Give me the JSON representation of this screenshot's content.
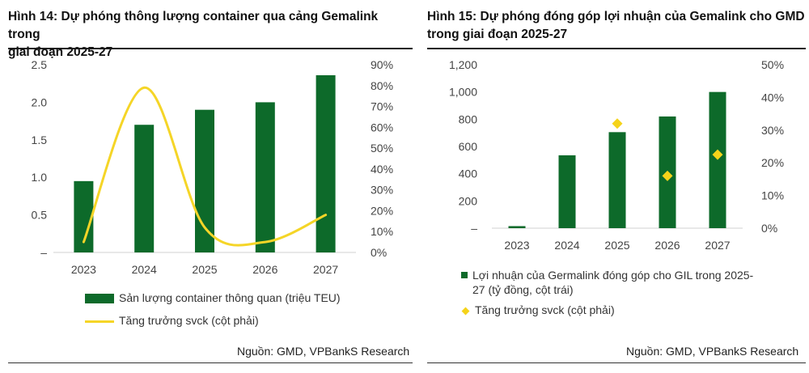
{
  "colors": {
    "bar": "#0d6a2a",
    "line": "#f5d527",
    "marker": "#f5d31a"
  },
  "left": {
    "title_line1": "Hình 14: Dự phóng thông lượng container qua cảng Gemalink trong",
    "title_line2": "giai đoạn 2025-27",
    "source": "Nguồn: GMD, VPBankS Research",
    "legend_bar": "Sản lượng container thông quan (triệu TEU)",
    "legend_line": "Tăng trưởng svck (cột phải)"
  },
  "right": {
    "title_line1": "Hình 15: Dự phóng đóng góp lợi nhuận của Gemalink cho GMD",
    "title_line2": "trong giai đoạn 2025-27",
    "source": "Nguồn: GMD, VPBankS Research",
    "legend_bar_line1": "Lợi nhuận của Germalink đóng góp cho GIL trong 2025-",
    "legend_bar_line2": "27 (tỷ đồng, cột trái)",
    "legend_marker": "Tăng trưởng svck (cột phải)"
  },
  "chart_data": [
    {
      "type": "bar",
      "categories": [
        "2023",
        "2024",
        "2025",
        "2026",
        "2027"
      ],
      "series": [
        {
          "name": "Sản lượng container thông quan (triệu TEU)",
          "type": "bar",
          "axis": "left",
          "values": [
            0.95,
            1.7,
            1.9,
            2.0,
            2.36
          ]
        },
        {
          "name": "Tăng trưởng svck (cột phải)",
          "type": "line",
          "axis": "right",
          "values": [
            0.05,
            0.79,
            0.12,
            0.05,
            0.18
          ]
        }
      ],
      "y_left": {
        "min": 0,
        "max": 2.5,
        "ticks": [
          "–",
          "0.5",
          "1.0",
          "1.5",
          "2.0",
          "2.5"
        ]
      },
      "y_right": {
        "min": 0,
        "max": 0.9,
        "ticks": [
          "0%",
          "10%",
          "20%",
          "30%",
          "40%",
          "50%",
          "60%",
          "70%",
          "80%",
          "90%"
        ]
      },
      "grid": false,
      "legend_position": "bottom"
    },
    {
      "type": "bar",
      "categories": [
        "2023",
        "2024",
        "2025",
        "2026",
        "2027"
      ],
      "series": [
        {
          "name": "Lợi nhuận của Germalink đóng góp cho GIL trong 2025-27 (tỷ đồng, cột trái)",
          "type": "bar",
          "axis": "left",
          "values": [
            15,
            535,
            705,
            820,
            1000
          ]
        },
        {
          "name": "Tăng trưởng svck (cột phải)",
          "type": "scatter",
          "axis": "right",
          "values": [
            null,
            null,
            0.32,
            0.16,
            0.225
          ]
        }
      ],
      "y_left": {
        "min": 0,
        "max": 1200,
        "ticks": [
          "–",
          "200",
          "400",
          "600",
          "800",
          "1,000",
          "1,200"
        ]
      },
      "y_right": {
        "min": 0,
        "max": 0.5,
        "ticks": [
          "0%",
          "10%",
          "20%",
          "30%",
          "40%",
          "50%"
        ]
      },
      "grid": false,
      "legend_position": "bottom"
    }
  ]
}
